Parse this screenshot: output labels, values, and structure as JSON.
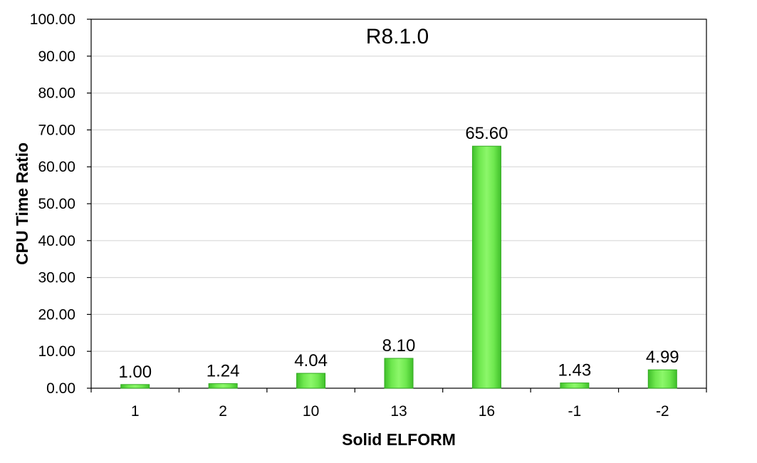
{
  "chart_data": {
    "type": "bar",
    "title": "R8.1.0",
    "xlabel": "Solid ELFORM",
    "ylabel": "CPU Time Ratio",
    "categories": [
      "1",
      "2",
      "10",
      "13",
      "16",
      "-1",
      "-2"
    ],
    "values": [
      1.0,
      1.24,
      4.04,
      8.1,
      65.6,
      1.43,
      4.99
    ],
    "data_labels": [
      "1.00",
      "1.24",
      "4.04",
      "8.10",
      "65.60",
      "1.43",
      "4.99"
    ],
    "ylim": [
      0,
      100
    ],
    "yticks": [
      "0.00",
      "10.00",
      "20.00",
      "30.00",
      "40.00",
      "50.00",
      "60.00",
      "70.00",
      "80.00",
      "90.00",
      "100.00"
    ],
    "grid": true,
    "legend": "none",
    "colors": {
      "bar_fill": "#66ee44",
      "bar_edge": "#33aa22",
      "gridline": "#d9d9d9",
      "axis": "#000000"
    }
  }
}
